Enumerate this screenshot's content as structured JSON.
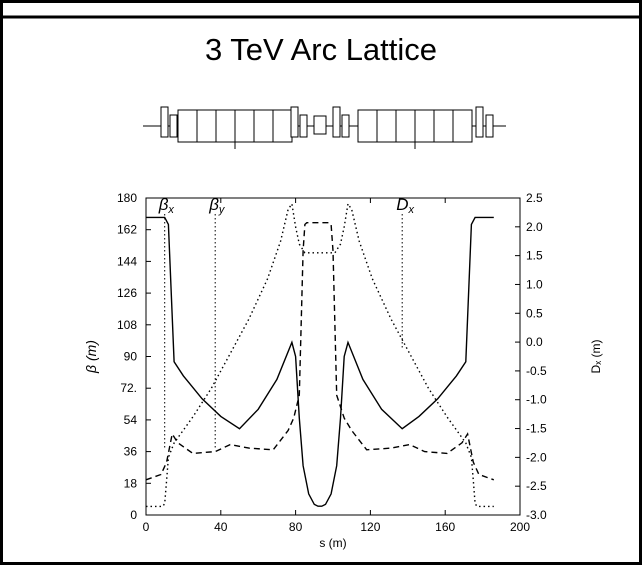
{
  "title": "3 TeV Arc Lattice",
  "chart_data": {
    "type": "line",
    "title": "3 TeV Arc Lattice",
    "xlabel": "s (m)",
    "ylabel_left": "β  (m)",
    "ylabel_right": "Dₓ (m)",
    "xlim": [
      0,
      200
    ],
    "ylim_left": [
      0,
      180
    ],
    "ylim_right": [
      -3.0,
      2.5
    ],
    "x_ticks": [
      "0",
      "40",
      "80",
      "120",
      "160",
      "200"
    ],
    "y_left_ticks": [
      "0",
      "18",
      "36",
      "54",
      "72.",
      "90",
      "108",
      "126",
      "144",
      "162",
      "180"
    ],
    "y_right_ticks": [
      "-3.0",
      "-2.5",
      "-2.0",
      "-1.5",
      "-1.0",
      "-0.5",
      "0.0",
      "0.5",
      "1.0",
      "1.5",
      "2.0",
      "2.5"
    ],
    "grid": false,
    "series": [
      {
        "name": "βx",
        "axis": "left",
        "style": "solid",
        "points": [
          [
            0,
            169
          ],
          [
            10,
            169
          ],
          [
            12,
            165
          ],
          [
            15,
            87
          ],
          [
            20,
            79
          ],
          [
            30,
            66
          ],
          [
            40,
            56
          ],
          [
            50,
            49
          ],
          [
            60,
            60
          ],
          [
            70,
            77
          ],
          [
            78,
            98
          ],
          [
            80,
            90
          ],
          [
            82,
            55
          ],
          [
            84,
            28
          ],
          [
            87,
            12
          ],
          [
            90,
            6
          ],
          [
            92,
            5
          ],
          [
            94,
            5
          ],
          [
            96,
            6
          ],
          [
            99,
            12
          ],
          [
            102,
            28
          ],
          [
            104,
            55
          ],
          [
            106,
            90
          ],
          [
            108,
            98
          ],
          [
            116,
            77
          ],
          [
            126,
            60
          ],
          [
            137,
            49
          ],
          [
            146,
            56
          ],
          [
            156,
            66
          ],
          [
            166,
            79
          ],
          [
            171,
            87
          ],
          [
            174,
            165
          ],
          [
            176,
            169
          ],
          [
            186,
            169
          ]
        ]
      },
      {
        "name": "βy",
        "axis": "left",
        "style": "dashed",
        "points": [
          [
            0,
            20
          ],
          [
            8,
            23
          ],
          [
            11,
            30
          ],
          [
            14,
            46
          ],
          [
            17,
            41
          ],
          [
            25,
            35
          ],
          [
            37,
            36
          ],
          [
            45,
            40
          ],
          [
            55,
            38
          ],
          [
            68,
            37
          ],
          [
            76,
            48
          ],
          [
            79,
            55
          ],
          [
            82,
            68
          ],
          [
            84,
            150
          ],
          [
            85,
            165
          ],
          [
            86,
            166
          ],
          [
            98,
            166
          ],
          [
            99,
            165
          ],
          [
            100,
            150
          ],
          [
            102,
            68
          ],
          [
            106,
            55
          ],
          [
            110,
            48
          ],
          [
            118,
            37
          ],
          [
            131,
            38
          ],
          [
            141,
            40
          ],
          [
            149,
            36
          ],
          [
            161,
            35
          ],
          [
            169,
            41
          ],
          [
            172,
            46
          ],
          [
            175,
            30
          ],
          [
            178,
            23
          ],
          [
            186,
            20
          ]
        ]
      },
      {
        "name": "Dx",
        "axis": "right",
        "style": "dotted",
        "points": [
          [
            0,
            -2.85
          ],
          [
            9,
            -2.85
          ],
          [
            10,
            -2.8
          ],
          [
            11,
            -2.4
          ],
          [
            12,
            -2.0
          ],
          [
            15,
            -1.75
          ],
          [
            25,
            -1.3
          ],
          [
            35,
            -0.8
          ],
          [
            45,
            -0.2
          ],
          [
            55,
            0.4
          ],
          [
            65,
            1.1
          ],
          [
            72,
            1.75
          ],
          [
            76,
            2.3
          ],
          [
            78,
            2.4
          ],
          [
            80,
            2.0
          ],
          [
            82,
            1.7
          ],
          [
            85,
            1.55
          ],
          [
            101,
            1.55
          ],
          [
            104,
            1.7
          ],
          [
            106,
            2.0
          ],
          [
            108,
            2.4
          ],
          [
            110,
            2.3
          ],
          [
            114,
            1.75
          ],
          [
            121,
            1.1
          ],
          [
            131,
            0.4
          ],
          [
            141,
            -0.2
          ],
          [
            151,
            -0.8
          ],
          [
            161,
            -1.3
          ],
          [
            171,
            -1.75
          ],
          [
            174,
            -2.0
          ],
          [
            175,
            -2.4
          ],
          [
            176,
            -2.8
          ],
          [
            177,
            -2.85
          ],
          [
            186,
            -2.85
          ]
        ]
      }
    ],
    "annotations": [
      {
        "text": "β",
        "sub": "x",
        "x": 10
      },
      {
        "text": "β",
        "sub": "y",
        "x": 37
      },
      {
        "text": "D",
        "sub": "x",
        "x": 137
      }
    ],
    "colors": {
      "line": "#000000",
      "background": "#ffffff"
    }
  }
}
